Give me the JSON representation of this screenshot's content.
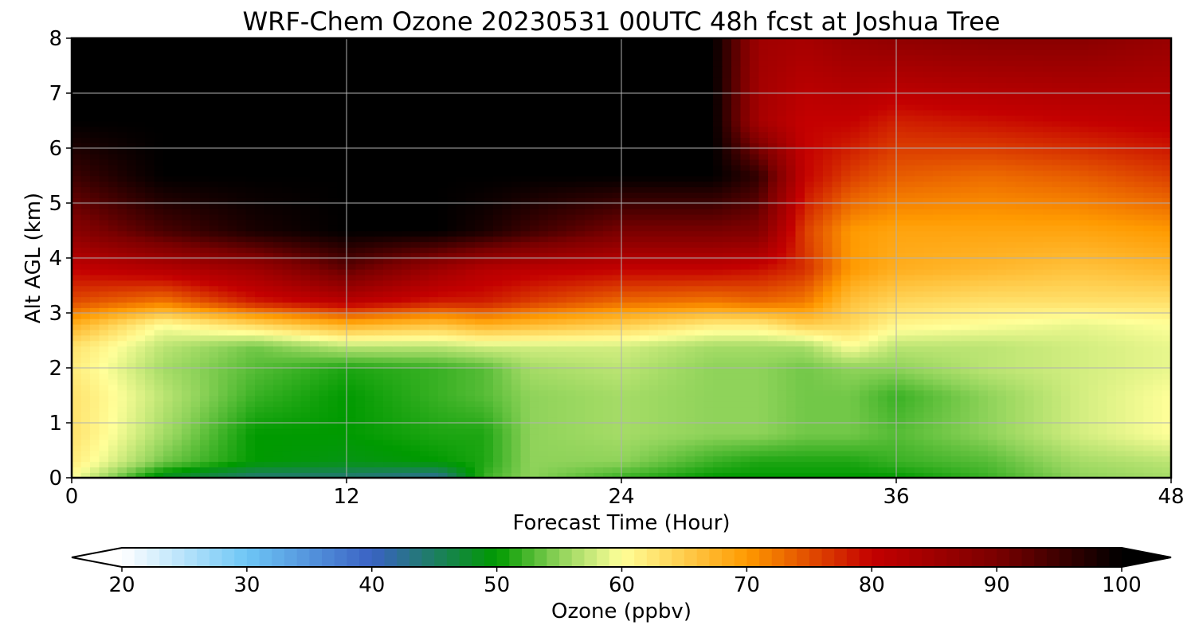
{
  "chart_data": {
    "type": "heatmap",
    "title": "WRF-Chem Ozone  20230531 00UTC 48h fcst at Joshua Tree",
    "xlabel": "Forecast Time (Hour)",
    "ylabel": "Alt AGL (km)",
    "xlim": [
      0,
      48
    ],
    "ylim": [
      0,
      8
    ],
    "x_ticks": [
      0,
      12,
      24,
      36,
      48
    ],
    "y_ticks": [
      0,
      1,
      2,
      3,
      4,
      5,
      6,
      7,
      8
    ],
    "grid": true,
    "colorbar": {
      "label": "Ozone  (ppbv)",
      "min": 20,
      "max": 100,
      "ticks": [
        20,
        30,
        40,
        50,
        60,
        70,
        80,
        90,
        100
      ],
      "extend": "both",
      "orientation": "horizontal",
      "colormap": [
        {
          "v": 20,
          "c": "#ffffff"
        },
        {
          "v": 30,
          "c": "#6ec6f5"
        },
        {
          "v": 40,
          "c": "#3a62c4"
        },
        {
          "v": 50,
          "c": "#009a00"
        },
        {
          "v": 55,
          "c": "#8fd35a"
        },
        {
          "v": 60,
          "c": "#ffff99"
        },
        {
          "v": 70,
          "c": "#ff9a00"
        },
        {
          "v": 80,
          "c": "#c40000"
        },
        {
          "v": 90,
          "c": "#7a0000"
        },
        {
          "v": 100,
          "c": "#000000"
        }
      ]
    },
    "grid_x": [
      0,
      4,
      8,
      12,
      16,
      18,
      20,
      24,
      28,
      30,
      32,
      34,
      36,
      40,
      44,
      48
    ],
    "grid_y": [
      0,
      0.3,
      0.8,
      1.5,
      2.0,
      2.4,
      2.8,
      3.2,
      3.8,
      4.5,
      5.5,
      6.5,
      8
    ],
    "values": [
      [
        60,
        48,
        44,
        44,
        42,
        52,
        55,
        52,
        50,
        50,
        50,
        50,
        50,
        52,
        55,
        56
      ],
      [
        62,
        54,
        50,
        49,
        50,
        51,
        55,
        55,
        52,
        51,
        51,
        51,
        52,
        53,
        56,
        57
      ],
      [
        63,
        56,
        50,
        50,
        51,
        51,
        55,
        56,
        55,
        55,
        54,
        54,
        53,
        55,
        58,
        60
      ],
      [
        63,
        57,
        52,
        50,
        52,
        53,
        55,
        56,
        55,
        55,
        54,
        54,
        52,
        55,
        58,
        60
      ],
      [
        62,
        56,
        53,
        51,
        52,
        53,
        56,
        57,
        55,
        55,
        54,
        55,
        55,
        57,
        58,
        59
      ],
      [
        63,
        57,
        54,
        57,
        57,
        58,
        58,
        58,
        56,
        56,
        56,
        60,
        57,
        57,
        58,
        59
      ],
      [
        68,
        60,
        64,
        68,
        66,
        68,
        67,
        65,
        62,
        62,
        65,
        64,
        61,
        60,
        59,
        60
      ],
      [
        75,
        72,
        78,
        81,
        78,
        78,
        76,
        73,
        72,
        73,
        72,
        66,
        64,
        63,
        63,
        63
      ],
      [
        80,
        82,
        85,
        92,
        85,
        82,
        81,
        80,
        80,
        79,
        77,
        70,
        68,
        67,
        66,
        67
      ],
      [
        88,
        94,
        98,
        100,
        100,
        98,
        95,
        90,
        90,
        89,
        76,
        70,
        69,
        69,
        69,
        70
      ],
      [
        95,
        100,
        100,
        100,
        100,
        100,
        100,
        100,
        100,
        96,
        80,
        76,
        74,
        73,
        74,
        76
      ],
      [
        100,
        100,
        100,
        100,
        100,
        100,
        100,
        100,
        100,
        84,
        80,
        80,
        78,
        79,
        80,
        81
      ],
      [
        100,
        100,
        100,
        100,
        100,
        100,
        100,
        100,
        100,
        85,
        84,
        86,
        87,
        88,
        88,
        86
      ]
    ]
  }
}
